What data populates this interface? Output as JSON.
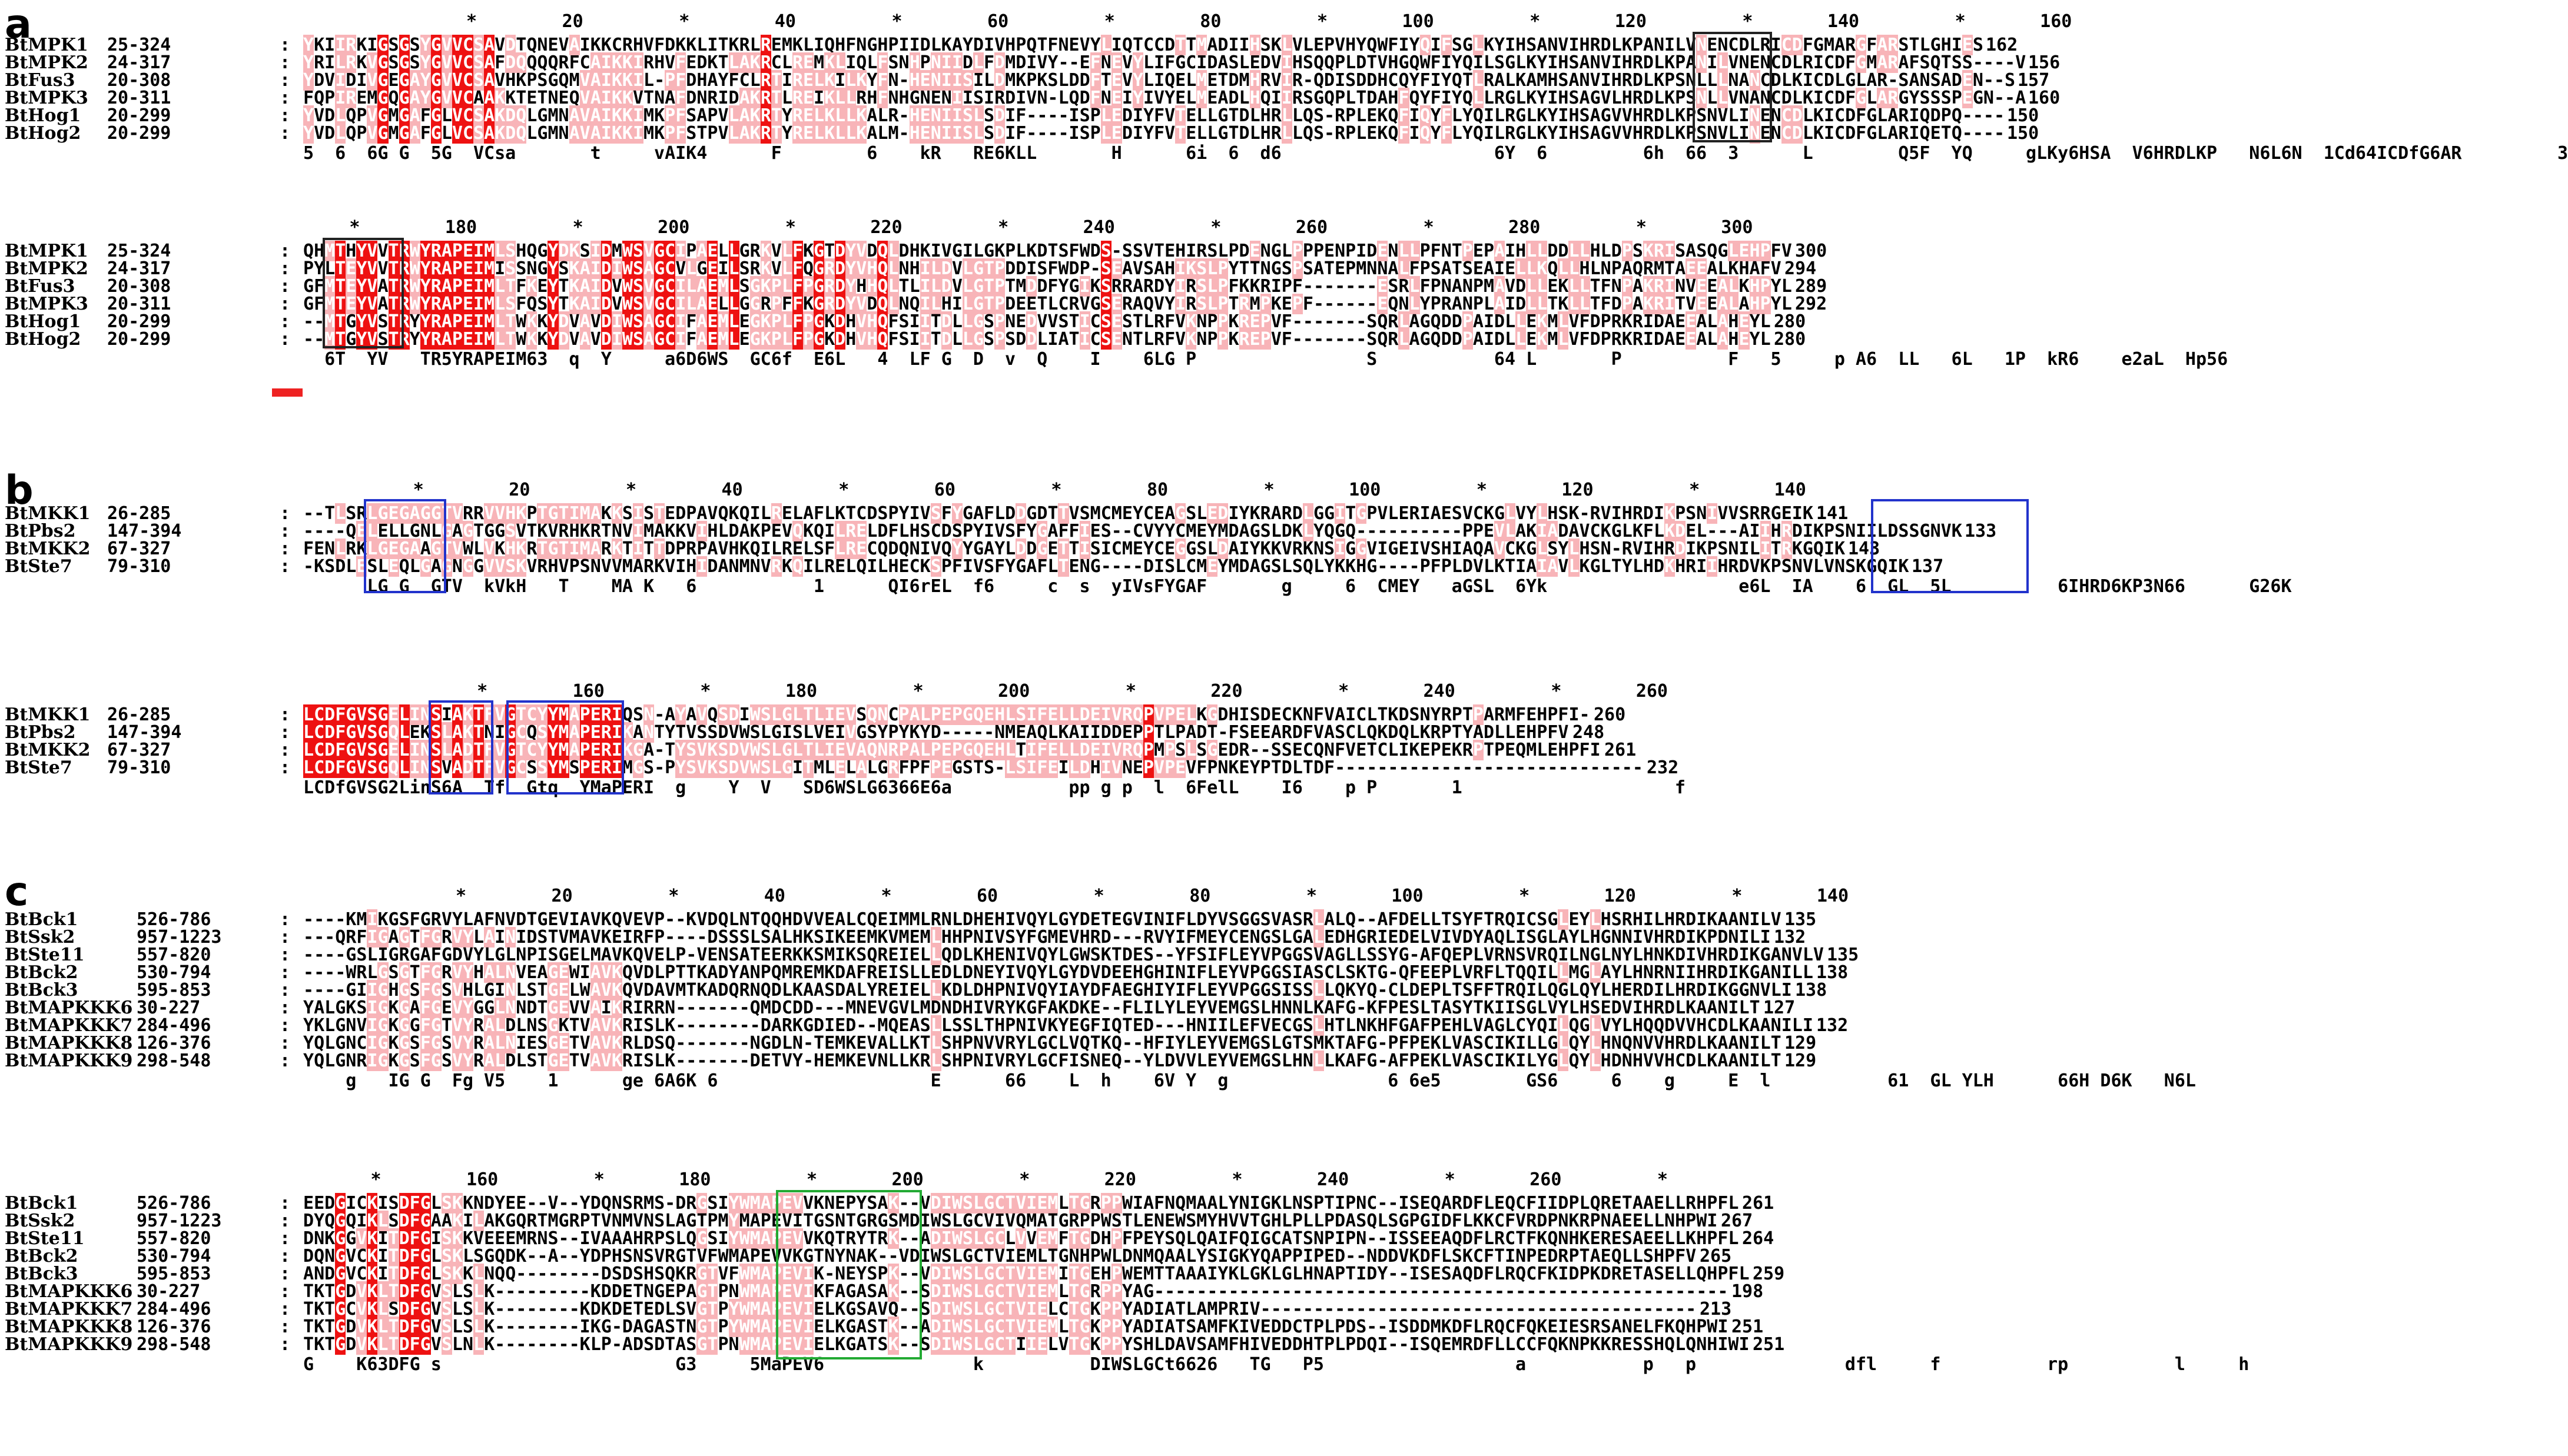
{
  "panels": [
    {
      "letter": "a",
      "blocks": [
        {
          "ruler": "                 *        20         *        40         *        60         *        80         *       100         *       120         *       140         *       160",
          "rows": [
            {
              "name": "BtMPK1",
              "range": "25-324",
              "seq": "YKIIRKIGSGSYGVVCSAVDTQNEVAIKKCRHVFDKKLITKRLREMKLIQHFNGHPIIDLKAYDIVHPQTFNEVYLIQTCCDTTMADIIHSKLVLEPVHYQWFIYQIFSGLKYIHSANVIHRDLKPANILVNENCDLRICDFGMARGFARSTLGHIES",
              "end": "162"
            },
            {
              "name": "BtMPK2",
              "range": "24-317",
              "seq": "YRILRKVGSGSYGVVCSAFDQQQQRFCAIKKIRHVFEDKTLAKRCLREMKLIQLFSNHPNIIDLFDMDIVY--EFNEVYLIFGCIDASLEDVIHSQQPLDTVHGQWFIYQILSGLKYIHSANVIHRDLKPANILVNENCDLRICDFGMARAFSQTSS----V",
              "end": "156"
            },
            {
              "name": "BtFus3",
              "range": "20-308",
              "seq": "YDVIDIVGEGAYGVVCSAVHKPSGQMVAIKKIL-PFDHAYFCLRTIRELKILKYFN-HENIISILDMKPKSLDDFTEVYLIQELMETDMHRVIR-QDISDDHCQYFIYQTLRALKAMHSANVIHRDLKPSNLLLNANCDLKICDLGLAR-SANSADEN--S",
              "end": "157"
            },
            {
              "name": "BtMPK3",
              "range": "20-311",
              "seq": "FQPIREMGQGAYGVVCAAKKTETNEQVAIKKVTNAFDNRIDAKRTLREIKLLRHFNHGNENIISIRDIVN-LQDFNEIYIVYELMEADLHQIIRSGQPLTDAHFQYFIYQLLRGLKYIHSAGVLHRDLKPSNLLVNANCDLKICDFGLARGYSSSPEGN--A",
              "end": "160"
            },
            {
              "name": "BtHog1",
              "range": "20-299",
              "seq": "YVDLQPVGMGAFGLVCSAKDQLGMNAVAIKKIMKPFSAPVLAKRTYRELKLLKALR-HENIISLSDIF----ISPLEDIYFVTELLGTDLHRLLQS-RPLEKQFIQYFLYQILRGLKYIHSAGVVHRDLKPSNVLINENCDLKICDFGLARIQDPQ----",
              "end": "150"
            },
            {
              "name": "BtHog2",
              "range": "20-299",
              "seq": "YVDLQPVGMGAFGLVCSAKDQLGMNAVAIKKIMKPFSTPVLAKRTYRELKLLKALM-HENIISLSDIF----ISPLEDIYFVTELLGTDLHRLLQS-RPLEKQFIQYFLYQILRGLKYIHSAGVVHRDLKPSNVLINENCDLKICDFGLARIQETQ----",
              "end": "150"
            }
          ],
          "consensus": "5  6  6G G  5G  VCsa       t     vAIK4      F        6    kR   RE6KLL       H      6i  6  d6                    6Y  6         6h  66  3      L        Q5F  YQ     gLKy6HSA  V6HRDLKP   N6L6N  1Cd64ICDfG6AR         3"
        },
        {
          "ruler": "      *        180         *       200         *       220         *       240         *       260         *       280         *       300",
          "rows": [
            {
              "name": "BtMPK1",
              "range": "25-324",
              "seq": "QHMTHYVVTRWYRAPEIMLSHQGYDKSIDMWSVGCIPAELLGRKVLFKGTDYVDQLDHKIVGILGKPLKDTSFWDS-SSVTEHIRSLPDENGLPPPENPIDENLLPFNTPEPAIHLLDDLLHLDPSKRISASQGLEHPFV",
              "end": "300"
            },
            {
              "name": "BtMPK2",
              "range": "24-317",
              "seq": "PYLTEYVVTRWYRAPEIMISSNGYSKAIDIWSAGCVLGEILSRKVLFQGRDYVHQLNHILDVLGTPDDISFWDP-SEAVSAHIKSLPYTTNGSPSATEPMNNALFPSATSEAIELLKQLLHLNPAQRMTAEEALKHAFV",
              "end": "294"
            },
            {
              "name": "BtFus3",
              "range": "20-308",
              "seq": "GFMTEYVATRWYRAPEIMLTFKEYTKAIDVWSVGCILAEMLSGKPLFPGRDYHHQLTLILDVLGTPTMDDFYGIKSRRARDYIRSLPFKKRIPF-------ESRLFPNANPMAVDLLEKLLTFNPAKRINVEEALKHPYL",
              "end": "289"
            },
            {
              "name": "BtMPK3",
              "range": "20-311",
              "seq": "GFMTEYVATRWYRAPEIMLSFQSYTKAIDVWSVGCILAELLGGRPFFKGRDYVDQLNQILHILGTPDEETLCRVGSERAQVYIRSLPTRMPKEPF------EQNLYPRANPLAIDLLTKLLTFDPAKRITVEEALAHPYL",
              "end": "292"
            },
            {
              "name": "BtHog1",
              "range": "20-299",
              "seq": "--MTGYVSTRYYRAPEIMLTWKKYDVAVDIWSAGCIFAEMLEGKPLFPGKDHVHQFSIITDLLGSPNEDVVSTICSESTLRFVKNPPKREPVF-------SQRLAGQDDPAIDLLEKMLVFDPRKRIDAEEALAHEYL",
              "end": "280"
            },
            {
              "name": "BtHog2",
              "range": "20-299",
              "seq": "--MTGYVSTRYYRAPEIMLTWKKYDVAVDIWSAGCIFAEMLEGKPLFPGKDHVHQFSIITDLLGSPSDDLIATICSENTLRFVKNPPKREPVF-------SQRLAGQDDPAIDLLEKMLVFDPRKRIDAEEALAHEYL",
              "end": "280"
            }
          ],
          "consensus": "  6T  YV   TR5YRAPEIM63  q  Y     a6D6WS  GC6f  E6L   4  LF G  D  v  Q    I    6LG P                S           64 L       P          F   5     p A6  LL   6L   1P  kR6    e2aL  Hp56"
        }
      ]
    },
    {
      "letter": "b",
      "blocks": [
        {
          "ruler": "            *        20         *        40         *        60         *        80         *       100         *       120         *       140",
          "rows": [
            {
              "name": "BtMKK1",
              "range": "26-285",
              "seq": "--TLSRLGEGAGGTVRRVVHKPTGTIMAKKSISTEDPAVQKQILRELAFLKTCDSPYIVSFYGAFLDDGDTTVSMCMEYCEAGSLEDIYKRARDLGGITGPVLERIAESVCKGLVYLHSK-RVIHRDIKPSNIVVSRRGEIK",
              "end": "141"
            },
            {
              "name": "BtPbs2",
              "range": "147-394",
              "seq": "----QELELLGNLGAGTGGSVTKVRHKRTNVIMAKKVIHLDAKPEVQKQILRELDFLHSCDSPYIVSFYGAFFIES--CVYYCMEYMDAGSLDKLYQGQ----------PPEVLAKIADAVCKGLKFLKDEL---AIIHRDIKPSNIILDSSGNVK",
              "end": "133"
            },
            {
              "name": "BtMKK2",
              "range": "67-327",
              "seq": "FENLRKLGEGAAGTVWLVKHKRTGTIMARKTITTDPRPAVHKQILRELSFLRECQDQNIVQYYGAYLDDGETTISICMEYCEGGSLDAIYKKVRKNSIGGVIGEIVSHIAQAVCKGLSYLHSN-RVIHRDIKPSNILITRKGQIK",
              "end": "143"
            },
            {
              "name": "BtSte7",
              "range": "79-310",
              "seq": "-KSDLESLEQLGAGNGGVVSKVRHVPSNVVMARKVIHIDANMNVRKQILRELQILHECKSPFIVSFYGAFLTENG----DISLCMEYMDAGSLSQLYKKHG----PFPLDVLKTIAIAVLKGLTYLHDKHRIIHRDVKPSNVLVNSKGQIK",
              "end": "137"
            }
          ],
          "consensus": "      LG G  GTV  kVkH   T    MA K   6           1      QI6rEL  f6     c  s  yIVsFYGAF       g     6  CMEY   aGSL  6Yk                  e6L  IA    6  GL  5L          6IHRD6KP3N66      G26K"
        },
        {
          "ruler": "                  *        160         *       180         *       200         *       220         *       240         *       260",
          "rows": [
            {
              "name": "BtMKK1",
              "range": "26-285",
              "seq": "LCDFGVSGELINSIAKTFVGTCYYMAPERIQSN-AYAVQSDIWSLGLTLIEVSQNCPALPEPGQEHLSIFELLDEIVRQPVPELKGDHISDECKNFVAICLTKDSNYRPTPARMFEHPFI-",
              "end": "260"
            },
            {
              "name": "BtPbs2",
              "range": "147-394",
              "seq": "LCDFGVSGQLEKSLAKTNIGCQSYMAPERIKANTYTVSSDVWSLGISLVEIVGSYPYKYD-----NMEAQLKAIIDDEPPTLPADT-FSEEARDFVASCLQKDQLKRPTYADLLEHPFV",
              "end": "248"
            },
            {
              "name": "BtMKK2",
              "range": "67-327",
              "seq": "LCDFGVSGELINSLADTFVGTCYYMAPERIKGA-TYSVKSDVWSLGLTLIEVAQNRPALPEPGQEHLTIFELLDEIVRQPMPSLSGEDR--SSECQNFVETCLIKEPEKRPTPEQMLEHPFI",
              "end": "261"
            },
            {
              "name": "BtSte7",
              "range": "79-310",
              "seq": "LCDFGVSGQLINSVADTFVGCSSYMSPERIMGS-PYSVKSDVWSLGITMLELALGRFPFPEGSTS-LSIFEILDHIVNEPVPEVFPNKEYPTDLTDF-----------------------------",
              "end": "232"
            }
          ],
          "consensus": "LCDfGVSG2LinS6A  Tf  Gtq  YMaPERI  g    Y  V   SD6WSLG6366E6a           pp g p  l  6FelL    I6    p P       1                    f"
        }
      ]
    },
    {
      "letter": "c",
      "blocks": [
        {
          "ruler": "                *        20         *        40         *        60         *        80         *       100         *       120         *       140",
          "rows": [
            {
              "name": "BtBck1",
              "range": "526-786",
              "seq": "----KMIKGSFGRVYLAFNVDTGEVIAVKQVEVP--KVDQLNTQQHDVVEALCQEIMMLRNLDHEHIVQYLGYDETEGVINIFLDYVSGGSVASRLALQ--AFDELLTSYFTRQICSGLEYLHSRHILHRDIKAANILV",
              "end": "135"
            },
            {
              "name": "BtSsk2",
              "range": "957-1223",
              "seq": "---QRFIGAGTFGRVYLAINIDSTVMAVKEIRFP----DSSSLSALHKSIKEEMKVMEMLHHPNIVSYFGMEVHRD---RVYIFMEYCENGSLGALEDHGRIEDELVIVDYAQLISGLAYLHGNNIVHRDIKPDNILI",
              "end": "132"
            },
            {
              "name": "BtSte11",
              "range": "557-820",
              "seq": "----GSLIGRGAFGDVYLGLNPISGELMAVKQVELP-VENSATEERKKSMIKSQREIELLQDLKHENIVQYLGWSKTDES--YFSIFLEYVPGGSVAGLLSSYG-AFQEPLVRNSVRQILNGLNYLHNKDIVHRDIKGANVLV",
              "end": "135"
            },
            {
              "name": "BtBck2",
              "range": "530-794",
              "seq": "----WRLGSGTFGRVYHALNVEAGEWIAVKQVDLPTTKADYANPQMREMKDAFREISLLEDLDNEYIVQYLGYDVDEEHGHINIFLEYVPGGSIASCLSKTG-QFEEPLVRFLTQQILLMGLAYLHNRNIIHRDIKGANILL",
              "end": "138"
            },
            {
              "name": "BtBck3",
              "range": "595-853",
              "seq": "----GIIGHGSFGSVHLGINLSTGELWAVKQVDAVMTKADQRNQDLKAASDALYREIELLKDLDHPNIVQYIAYDFAEGHIYIFLEYVPGGSISSLLQKYQ-CLDEPLTSFFTRQILQGLQYLHERDILHRDIKGGNVLI",
              "end": "138"
            },
            {
              "name": "BtMAPKKK6",
              "range": "30-227",
              "seq": "YALGKSIGKGAFGEVYGGLNNDTGEVVAIKRIRRN-------QMDCDD---MNEVGVLMDNDHIVRYKGFAKDKE--FLILYLEYVEMGSLHNNLKAFG-KFPESLTASYTKIISGLVYLHSEDVIHRDLKAANILT",
              "end": "127"
            },
            {
              "name": "BtMAPKKK7",
              "range": "284-496",
              "seq": "YKLGNVIGKGGFGTVYRALDLNSGKTVAVKRISLK--------DARKGDIED--MQEASLLSSLTHPNIVKYEGFIQTED---HNIILEFVECGSLHTLNKHFGAFPEHLVAGLCYQILQGLVYLHQQDVVHCDLKAANILI",
              "end": "132"
            },
            {
              "name": "BtMAPKKK8",
              "range": "126-376",
              "seq": "YQLGNCIGKGSFGSVYRALNIESGETVAVKRLDSQ-------NGDLN-TEMKEVALLKTLSHPNVVRYLGCLVQTKQ--HFIYLEYVEMGSLGTSMKTAFG-PFPEKLVASCIKILLGLQYLHNQNVVHRDLKAANILT",
              "end": "129"
            },
            {
              "name": "BtMAPKKK9",
              "range": "298-548",
              "seq": "YQLGNRIGKGSFGSVYRALDLSTGETVAVKRISLK-------DETVY-HEMKEVNLLKRLSHPNIVRYLGCFISNEQ--YLDVVLEYVEMGSLHNLLKAFG-AFPEKLVASCIKILYGLQYLHDNHVVHCDLKAANILT",
              "end": "129"
            }
          ],
          "consensus": "    g   IG G  Fg V5    1      ge 6A6K 6                    E      66    L  h    6V Y  g               6 6e5        GS6     6    g     E  l           61  GL YLH      66H D6K   N6L"
        },
        {
          "ruler": "        *        160         *       180         *       200         *       220         *       240         *       260         *",
          "rows": [
            {
              "name": "BtBck1",
              "range": "526-786",
              "seq": "EEDGICKISDFGLSKKNDYEE--V--YDQNSRMS-DRGSIYWMAPEVVKNEPYSAK--VDIWSLGCTVIEMLTGRPPWIAFNQMAALYNIGKLNSPTIPNC--ISEQARDFLEQCFIIDPLQRETAAELLRHPFL",
              "end": "261"
            },
            {
              "name": "BtSsk2",
              "range": "957-1223",
              "seq": "DYQGQIKLSDFGAAKILAKGQRTMGRPTVNMVNSLAGTPMYMAPEVITGSNTGRGSMDIWSLGCVIVQMATGRPPWSTLENEWSMYHVVTGHLPLLPDASQLSGPGIDFLKKCFVRDPNKRPNAEELLNHPWI",
              "end": "267"
            },
            {
              "name": "BtSte11",
              "range": "557-820",
              "seq": "DNKGGVKITDFGISKKVEEEMRNS--IVAAAHRPSLQGSIYWMAPEVVKQTRYTRK--ADIWSLGCLVVEMFTGDHPFPEYSQLQAIFQIGCATSNPIPN--ISSEEAQDFLRCTFKQNHKERESAEELLKHPFL",
              "end": "264"
            },
            {
              "name": "BtBck2",
              "range": "530-794",
              "seq": "DQNGVCKITDFGLSKLSGQDK--A--YDPHSNSVRGTVFWMAPEVVKGTNYNAK--VDIWSLGCTVIEMLTGNHPWLDNMQAALYSIGKYQAPPIPED--NDDVKDFLSKCFTINPEDRPTAEQLLSHPFV",
              "end": "265"
            },
            {
              "name": "BtBck3",
              "range": "595-853",
              "seq": "ANDGVCKITDFGLSKKLNQQ--------DSDSHSQKRGTVFWMAPEVIK-NEYSPK--VDIWSLGCTVIEMITGEHPWEMTTAAAIYKLGKLGLHNAPTIDY--ISESAQDFLRQCFKIDPKDRETASELLQHPFL",
              "end": "259"
            },
            {
              "name": "BtMAPKKK6",
              "range": "30-227",
              "seq": "TKTGDVKLTDFGVSLSLK---------KDDETNGEPAGTPNWMAPEVIKFAGASAK--SDIWSLGCTVIEMLTGRPPYAG------------------------------------------------------",
              "end": "198"
            },
            {
              "name": "BtMAPKKK7",
              "range": "284-496",
              "seq": "TKTGCVKLSDFGVSLSLK--------KDKDETEDLSVGTPYWMAPEVIELKGSAVQ--SDIWSLGCTVIELCTGKPPYADIATLAMPRIV-----------------------------------------",
              "end": "213"
            },
            {
              "name": "BtMAPKKK8",
              "range": "126-376",
              "seq": "TKTGDVKLTDFGVSLSLK--------IKG-DAGASTNGTPYWMAPEVIELKGASTK--ADIWSLGCTVIEMLTGKPPYADIATSAMFKIVEDDCTPLPDS--ISDDMKDFLRQCFQKEIESRSANELFKQHPWI",
              "end": "251"
            },
            {
              "name": "BtMAPKKK9",
              "range": "298-548",
              "seq": "TKTGDVKLTDFGVSLNLK--------KLP-ADSDTASGTPNWMAPEVIELKGATSK--SDIWSLGCTIIELVTGKPPYSHLDAVSAMFHIVEDDHTPLPDQI--ISQEMRDFLLCCFQKNPKKRESSHQLQNHIWI",
              "end": "251"
            }
          ],
          "consensus": "G    K63DFG s                      G3     5MaPEV6              k          DIWSLGCt6626   TG   P5                  a           p   p              dfl     f          rp          l     h"
        }
      ]
    }
  ],
  "colors": {
    "identical": "#ee1111",
    "similar": "#f8b4b8",
    "box_black": "#222222",
    "box_blue": "#2233cc",
    "box_green": "#22aa33",
    "marker_red": "#ee2222"
  }
}
